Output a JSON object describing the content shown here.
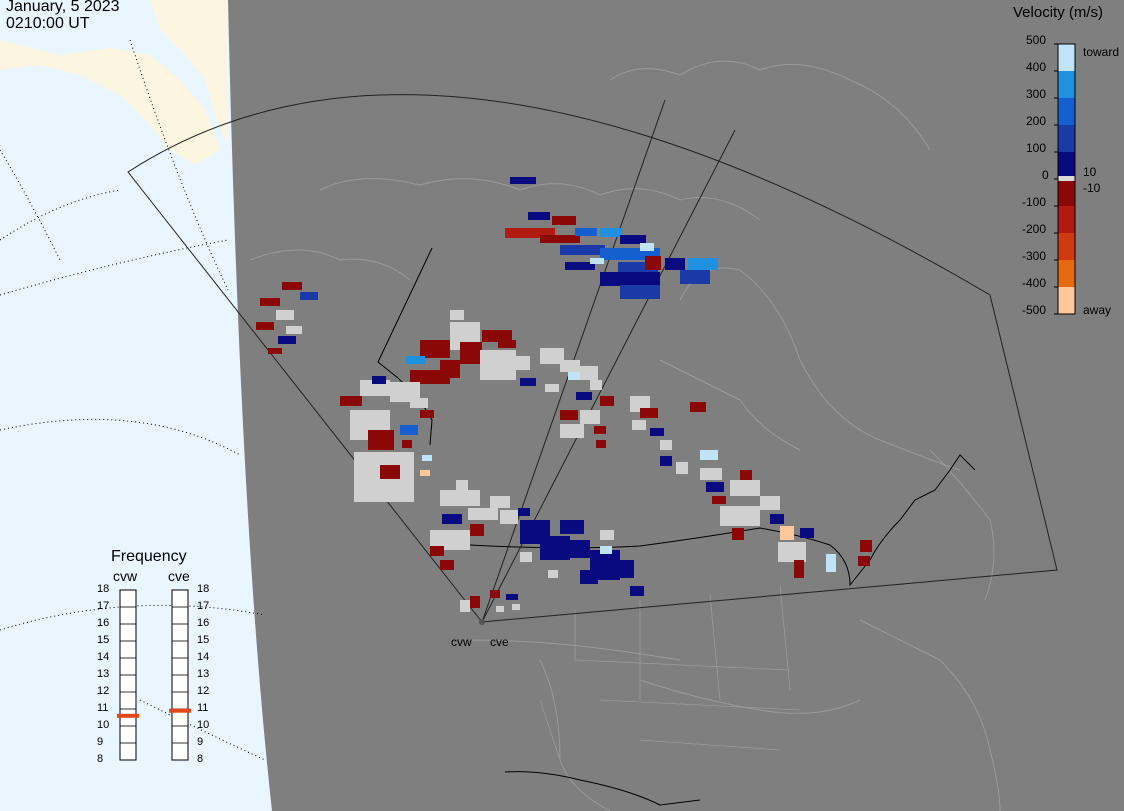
{
  "header": {
    "date": "January, 5 2023",
    "time": "0210:00 UT"
  },
  "velocity_legend": {
    "title": "Velocity (m/s)",
    "ticks": [
      "500",
      "400",
      "300",
      "200",
      "100",
      "0",
      "-100",
      "-200",
      "-300",
      "-400",
      "-500"
    ],
    "near_zero_labels": [
      "10",
      "-10"
    ],
    "toward_label": "toward",
    "away_label": "away"
  },
  "frequency_panel": {
    "title": "Frequency",
    "radars": [
      {
        "name": "cvw",
        "frequency_mhz": 10.6
      },
      {
        "name": "cve",
        "frequency_mhz": 10.9
      }
    ],
    "ticks": [
      "18",
      "17",
      "16",
      "15",
      "14",
      "13",
      "12",
      "11",
      "10",
      "9",
      "8"
    ]
  },
  "sites": [
    "cvw",
    "cve"
  ],
  "colors": {
    "toward": [
      "#0a0a80",
      "#1a3aa8",
      "#1560d0",
      "#2090e0",
      "#bfe4fa"
    ],
    "away": [
      "#8a0808",
      "#b01a10",
      "#d03a10",
      "#e86a10",
      "#ffc89a"
    ],
    "ground_scatter": "#d0d0d0",
    "night": "#7f7f7f",
    "ocean_day": "#eaf6ff",
    "land_day": "#fcf6e0"
  }
}
